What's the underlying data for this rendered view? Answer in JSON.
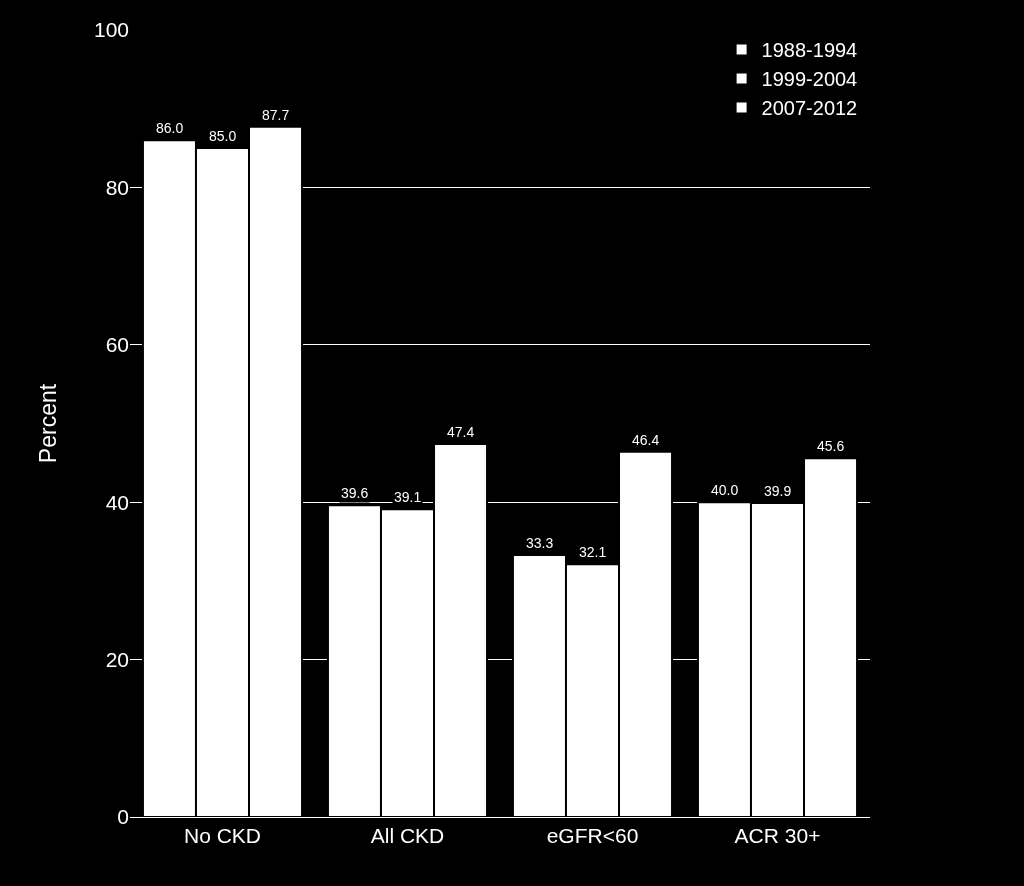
{
  "chart_data": {
    "type": "bar",
    "ylabel": "Percent",
    "categories": [
      "No CKD",
      "All CKD",
      "eGFR<60",
      "ACR 30+"
    ],
    "series": [
      {
        "name": "1988-1994",
        "color": "#ffffff",
        "values": [
          86.0,
          39.6,
          33.3,
          40.0
        ],
        "value_labels": [
          "86.0",
          "39.6",
          "33.3",
          "40.0"
        ]
      },
      {
        "name": "1999-2004",
        "color": "#ffffff",
        "values": [
          85.0,
          39.1,
          32.1,
          39.9
        ],
        "value_labels": [
          "85.0",
          "39.1",
          "32.1",
          "39.9"
        ]
      },
      {
        "name": "2007-2012",
        "color": "#ffffff",
        "values": [
          87.7,
          47.4,
          46.4,
          45.6
        ],
        "value_labels": [
          "87.7",
          "47.4",
          "46.4",
          "45.6"
        ]
      }
    ],
    "ylim": [
      0,
      100
    ],
    "yticks": [
      0,
      20,
      40,
      60,
      80,
      100
    ],
    "grid": "y",
    "legend": "top right"
  }
}
